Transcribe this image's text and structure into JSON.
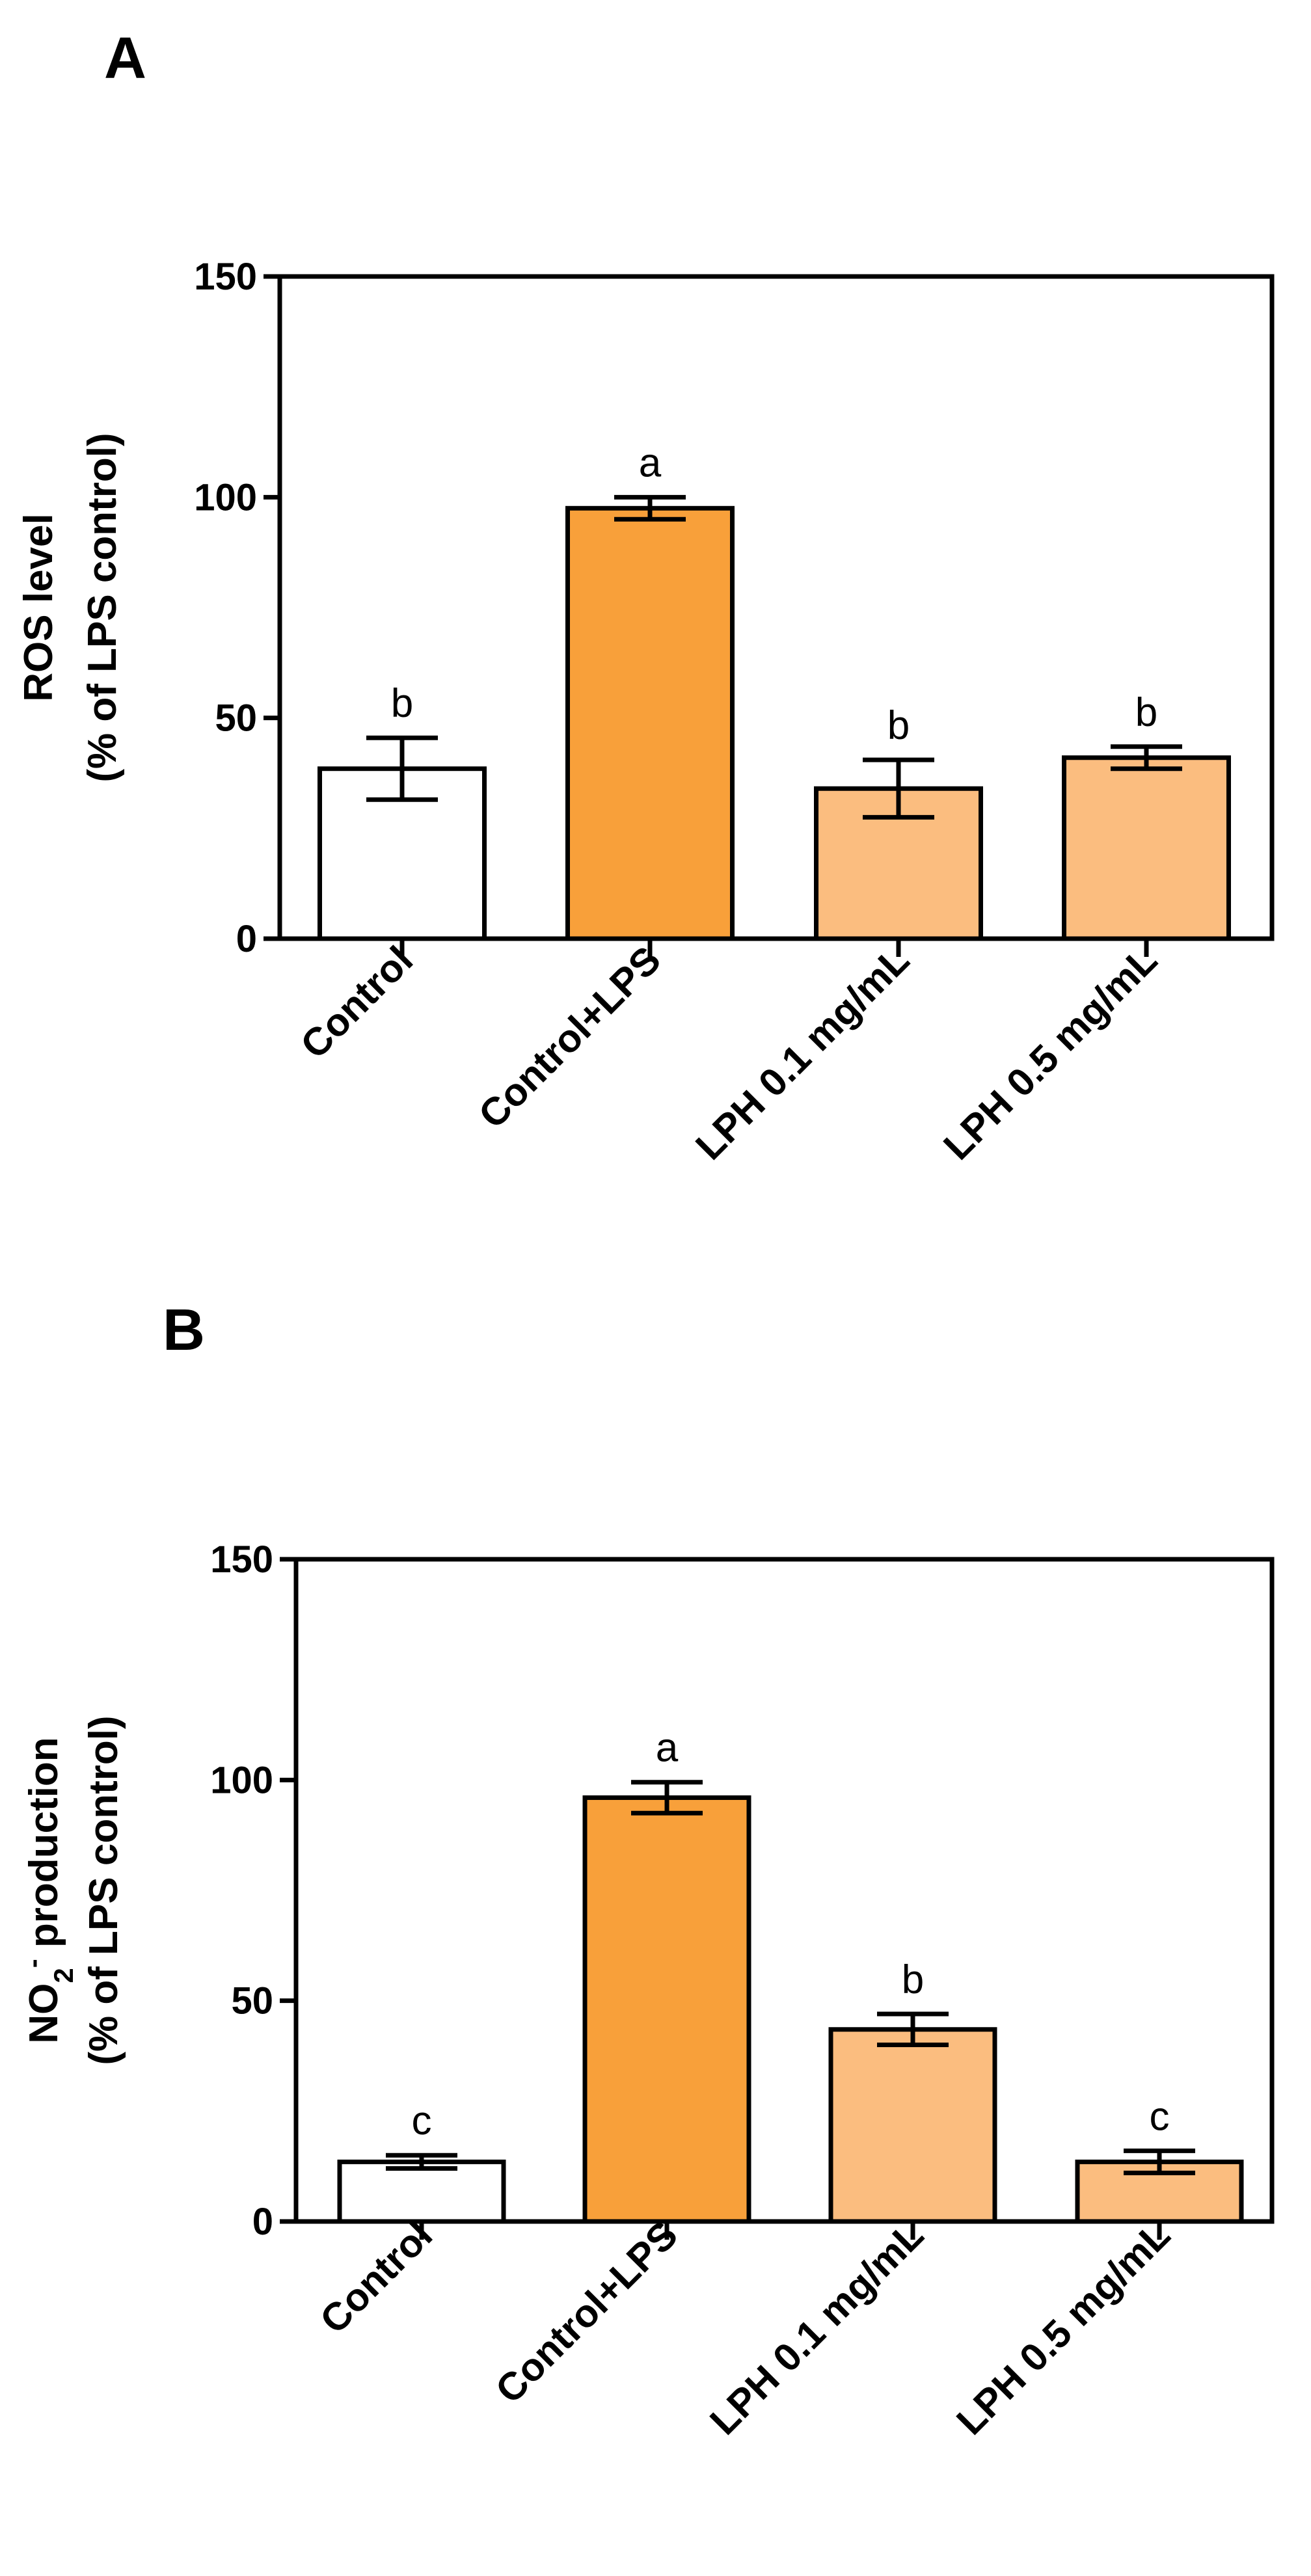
{
  "chart_data": [
    {
      "panel": "A",
      "type": "bar",
      "categories": [
        "Control",
        "Control+LPS",
        "LPH 0.1 mg/mL",
        "LPH 0.5 mg/mL"
      ],
      "values": [
        38.5,
        97.5,
        34,
        41
      ],
      "errors": [
        7,
        2.5,
        6.5,
        2.5
      ],
      "significance": [
        "b",
        "a",
        "b",
        "b"
      ],
      "colors": [
        "#ffffff",
        "#f8a03a",
        "#fbbd7f",
        "#fbbd7f"
      ],
      "ylabel_line1": "ROS level",
      "ylabel_line2": "(% of LPS control)",
      "ylabel_sub": "",
      "ylabel_rest": "",
      "ylim": [
        0,
        150
      ],
      "yticks": [
        0,
        50,
        100,
        150
      ]
    },
    {
      "panel": "B",
      "type": "bar",
      "categories": [
        "Control",
        "Control+LPS",
        "LPH 0.1  mg/mL",
        "LPH 0.5 mg/mL"
      ],
      "values": [
        13.5,
        96,
        43.5,
        13.5
      ],
      "errors": [
        1.5,
        3.5,
        3.5,
        2.5
      ],
      "significance": [
        "c",
        "a",
        "b",
        "c"
      ],
      "colors": [
        "#ffffff",
        "#f8a03a",
        "#fbbd7f",
        "#fbbd7f"
      ],
      "ylabel_line1": "NO",
      "ylabel_line2": "(% of LPS control)",
      "ylabel_sub": "2",
      "ylabel_sup": "-",
      "ylabel_rest": " production",
      "ylim": [
        0,
        150
      ],
      "yticks": [
        0,
        50,
        100,
        150
      ]
    }
  ]
}
